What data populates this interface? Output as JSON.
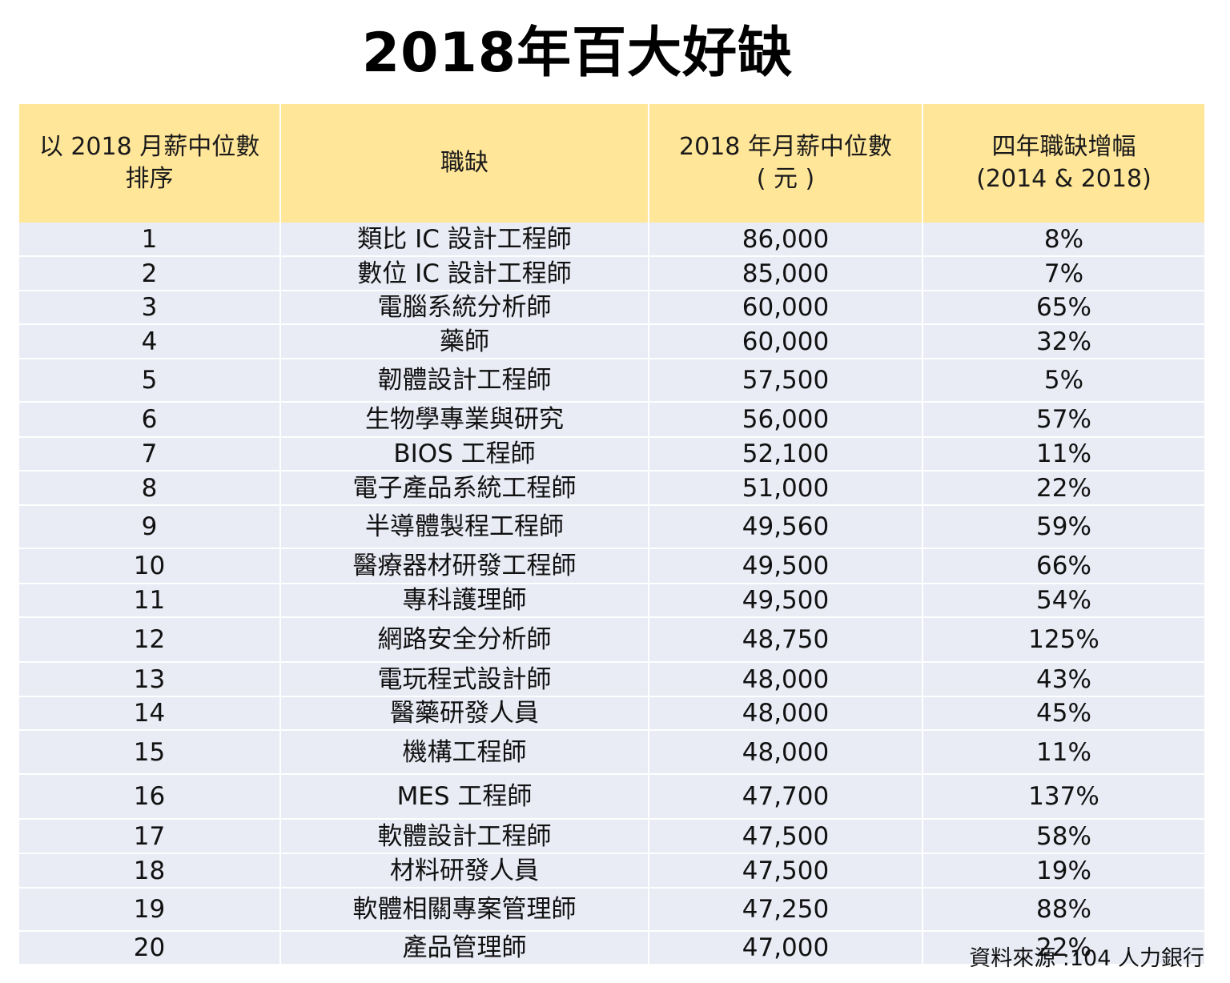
{
  "title": "2018年百大好缺",
  "table": {
    "headers": [
      {
        "line1": "以 2018 月薪中位數",
        "line2": "排序"
      },
      {
        "line1": "職缺",
        "line2": ""
      },
      {
        "line1": "2018 年月薪中位數",
        "line2": "( 元 )"
      },
      {
        "line1": "四年職缺增幅",
        "line2": "(2014 & 2018)"
      }
    ],
    "rows": [
      {
        "rank": "1",
        "job": "類比 IC 設計工程師",
        "salary": "86,000",
        "growth": "8%"
      },
      {
        "rank": "2",
        "job": "數位 IC 設計工程師",
        "salary": "85,000",
        "growth": "7%"
      },
      {
        "rank": "3",
        "job": "電腦系統分析師",
        "salary": "60,000",
        "growth": "65%"
      },
      {
        "rank": "4",
        "job": "藥師",
        "salary": "60,000",
        "growth": "32%"
      },
      {
        "rank": "5",
        "job": "韌體設計工程師",
        "salary": "57,500",
        "growth": "5%"
      },
      {
        "rank": "6",
        "job": "生物學專業與研究",
        "salary": "56,000",
        "growth": "57%"
      },
      {
        "rank": "7",
        "job": "BIOS 工程師",
        "salary": "52,100",
        "growth": "11%"
      },
      {
        "rank": "8",
        "job": "電子產品系統工程師",
        "salary": "51,000",
        "growth": "22%"
      },
      {
        "rank": "9",
        "job": "半導體製程工程師",
        "salary": "49,560",
        "growth": "59%"
      },
      {
        "rank": "10",
        "job": "醫療器材研發工程師",
        "salary": "49,500",
        "growth": "66%"
      },
      {
        "rank": "11",
        "job": "專科護理師",
        "salary": "49,500",
        "growth": "54%"
      },
      {
        "rank": "12",
        "job": "網路安全分析師",
        "salary": "48,750",
        "growth": "125%"
      },
      {
        "rank": "13",
        "job": "電玩程式設計師",
        "salary": "48,000",
        "growth": "43%"
      },
      {
        "rank": "14",
        "job": "醫藥研發人員",
        "salary": "48,000",
        "growth": "45%"
      },
      {
        "rank": "15",
        "job": "機構工程師",
        "salary": "48,000",
        "growth": "11%"
      },
      {
        "rank": "16",
        "job": "MES 工程師",
        "salary": "47,700",
        "growth": "137%"
      },
      {
        "rank": "17",
        "job": "軟體設計工程師",
        "salary": "47,500",
        "growth": "58%"
      },
      {
        "rank": "18",
        "job": "材料研發人員",
        "salary": "47,500",
        "growth": "19%"
      },
      {
        "rank": "19",
        "job": "軟體相關專案管理師",
        "salary": "47,250",
        "growth": "88%"
      },
      {
        "rank": "20",
        "job": "產品管理師",
        "salary": "47,000",
        "growth": "22%"
      }
    ]
  },
  "source": "資料來源 :104 人力銀行",
  "colors": {
    "header_bg": "#FFE699",
    "row_bg": "#E9EBF5",
    "grid": "#FFFFFF"
  }
}
